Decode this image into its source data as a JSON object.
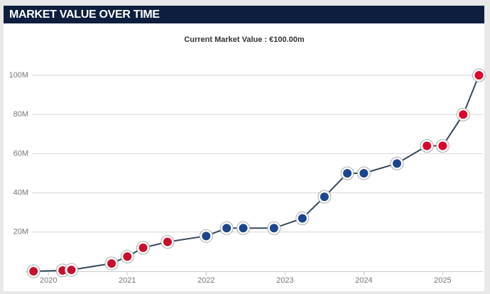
{
  "header": {
    "title": "MARKET VALUE OVER TIME"
  },
  "chart_data": {
    "type": "line",
    "subtitle": "Current Market Value : €100.00m",
    "x": [
      2019.81,
      2020.18,
      2020.29,
      2020.8,
      2021.0,
      2021.2,
      2021.51,
      2022.0,
      2022.26,
      2022.47,
      2022.86,
      2023.22,
      2023.5,
      2023.79,
      2024.0,
      2024.42,
      2024.8,
      2025.0,
      2025.26,
      2025.46
    ],
    "values": [
      0,
      0.4,
      0.7,
      4,
      7.5,
      12,
      15,
      18,
      22,
      22,
      22,
      27,
      38,
      50,
      50,
      55,
      64,
      64,
      80,
      100
    ],
    "color": "#34495e",
    "marker_colors": [
      "#c8102e",
      "#c8102e",
      "#c8102e",
      "#c8102e",
      "#c8102e",
      "#c8102e",
      "#c8102e",
      "#1b458f",
      "#1b458f",
      "#1b458f",
      "#1b458f",
      "#1b458f",
      "#1b458f",
      "#1b458f",
      "#1b458f",
      "#1b458f",
      "#dc052d",
      "#dc052d",
      "#dc052d",
      "#dc052d"
    ],
    "xlim": [
      2019.7,
      2025.51
    ],
    "xticks": [
      2020,
      2021,
      2022,
      2023,
      2024,
      2025
    ],
    "ylim": [
      0,
      104
    ],
    "yticks": [
      {
        "value": 20,
        "label": "20M"
      },
      {
        "value": 40,
        "label": "40M"
      },
      {
        "value": 60,
        "label": "60M"
      },
      {
        "value": 80,
        "label": "80M"
      },
      {
        "value": 100,
        "label": "100M"
      }
    ],
    "grid": true
  }
}
